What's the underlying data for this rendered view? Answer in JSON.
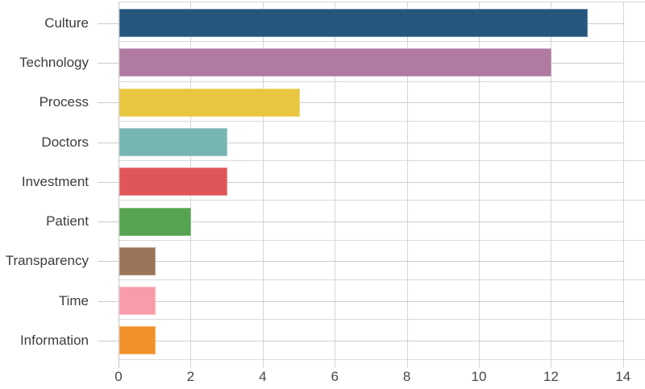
{
  "chart_data": {
    "type": "bar",
    "orientation": "horizontal",
    "title": "",
    "xlabel": "",
    "ylabel": "",
    "categories": [
      "Culture",
      "Technology",
      "Process",
      "Doctors",
      "Investment",
      "Patient",
      "Transparency",
      "Time",
      "Information"
    ],
    "values": [
      13,
      12,
      5,
      3,
      3,
      2,
      1,
      1,
      1
    ],
    "bar_colors": [
      "#25577E",
      "#B07AA1",
      "#E9C63F",
      "#76B6B1",
      "#E05557",
      "#56A352",
      "#9A7459",
      "#F99CA9",
      "#F2912A"
    ],
    "xlim": [
      0,
      14
    ],
    "xticks": [
      0,
      2,
      4,
      6,
      8,
      10,
      12,
      14
    ],
    "xtick_labels": [
      "0",
      "2",
      "4",
      "6",
      "8",
      "10",
      "12",
      "14"
    ],
    "grid": true,
    "legend": false,
    "background": "#ffffff"
  },
  "theme": {
    "grid_color": "#d6d6d6",
    "row_line_color": "#dadada",
    "zero_line_color": "#c6c6c6",
    "tick_color": "#cccccc",
    "category_label_color": "#3c3c3c",
    "tick_label_color": "#474747"
  }
}
